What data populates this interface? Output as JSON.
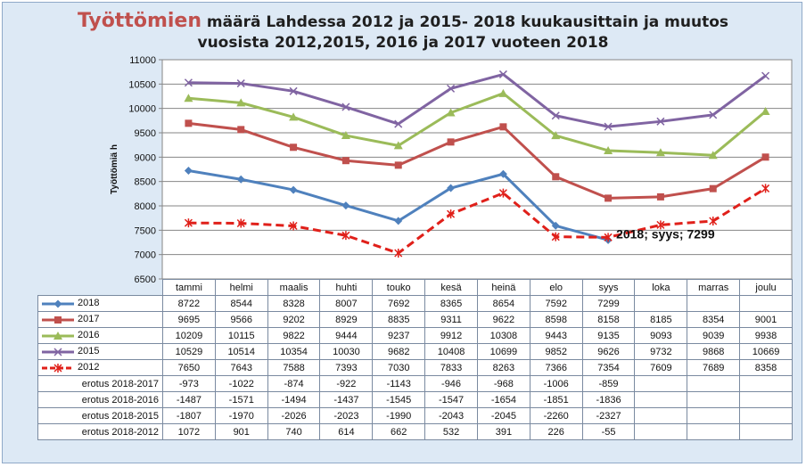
{
  "title": {
    "accent": "Työttömien",
    "line1_rest": " määrä Lahdessa 2012 ja 2015- 2018 kuukausittain ja muutos",
    "line2": "vuosista 2012,2015, 2016 ja 2017 vuoteen 2018"
  },
  "chart_data": {
    "type": "line",
    "ylabel": "Työttömiä h",
    "ylim": [
      6500,
      11000
    ],
    "yticks": [
      6500,
      7000,
      7500,
      8000,
      8500,
      9000,
      9500,
      10000,
      10500,
      11000
    ],
    "grid": true,
    "categories": [
      "tammi",
      "helmi",
      "maalis",
      "huhti",
      "touko",
      "kesä",
      "heinä",
      "elo",
      "syys",
      "loka",
      "marras",
      "joulu"
    ],
    "series": [
      {
        "name": "2018",
        "color": "#4f81bd",
        "marker": "diamond",
        "dash": false,
        "values": [
          8722,
          8544,
          8328,
          8007,
          7692,
          8365,
          8654,
          7592,
          7299,
          null,
          null,
          null
        ]
      },
      {
        "name": "2017",
        "color": "#c0504d",
        "marker": "square",
        "dash": false,
        "values": [
          9695,
          9566,
          9202,
          8929,
          8835,
          9311,
          9622,
          8598,
          8158,
          8185,
          8354,
          9001
        ]
      },
      {
        "name": "2016",
        "color": "#9bbb59",
        "marker": "triangle",
        "dash": false,
        "values": [
          10209,
          10115,
          9822,
          9444,
          9237,
          9912,
          10308,
          9443,
          9135,
          9093,
          9039,
          9938
        ]
      },
      {
        "name": "2015",
        "color": "#8064a2",
        "marker": "x",
        "dash": false,
        "values": [
          10529,
          10514,
          10354,
          10030,
          9682,
          10408,
          10699,
          9852,
          9626,
          9732,
          9868,
          10669
        ]
      },
      {
        "name": "2012",
        "color": "#e0201a",
        "marker": "star",
        "dash": true,
        "values": [
          7650,
          7643,
          7588,
          7393,
          7030,
          7833,
          8263,
          7366,
          7354,
          7609,
          7689,
          8358
        ]
      }
    ],
    "annotation": {
      "text": "2018; syys; 7299",
      "series": "2018",
      "category": "syys"
    },
    "difference_rows": [
      {
        "label": "erotus 2018-2017",
        "values": [
          -973,
          -1022,
          -874,
          -922,
          -1143,
          -946,
          -968,
          -1006,
          -859,
          null,
          null,
          null
        ]
      },
      {
        "label": "erotus 2018-2016",
        "values": [
          -1487,
          -1571,
          -1494,
          -1437,
          -1545,
          -1547,
          -1654,
          -1851,
          -1836,
          null,
          null,
          null
        ]
      },
      {
        "label": "erotus 2018-2015",
        "values": [
          -1807,
          -1970,
          -2026,
          -2023,
          -1990,
          -2043,
          -2045,
          -2260,
          -2327,
          null,
          null,
          null
        ]
      },
      {
        "label": "erotus 2018-2012",
        "values": [
          1072,
          901,
          740,
          614,
          662,
          532,
          391,
          226,
          -55,
          null,
          null,
          null
        ]
      }
    ]
  }
}
